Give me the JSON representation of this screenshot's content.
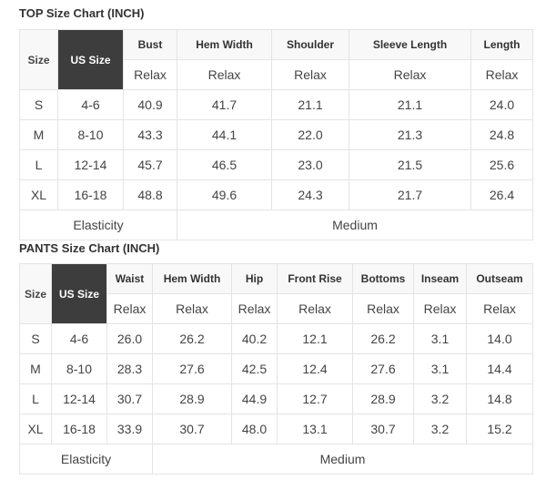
{
  "top": {
    "title": "TOP Size Chart (INCH)",
    "size_label": "Size",
    "us_size_label": "US Size",
    "columns": [
      "Bust",
      "Hem Width",
      "Shoulder",
      "Sleeve Length",
      "Length"
    ],
    "fit": "Relax",
    "rows": [
      {
        "size": "S",
        "us": "4-6",
        "values": [
          "40.9",
          "41.7",
          "21.1",
          "21.1",
          "24.0"
        ]
      },
      {
        "size": "M",
        "us": "8-10",
        "values": [
          "43.3",
          "44.1",
          "22.0",
          "21.3",
          "24.8"
        ]
      },
      {
        "size": "L",
        "us": "12-14",
        "values": [
          "45.7",
          "46.5",
          "23.0",
          "21.5",
          "25.6"
        ]
      },
      {
        "size": "XL",
        "us": "16-18",
        "values": [
          "48.8",
          "49.6",
          "24.3",
          "21.7",
          "26.4"
        ]
      }
    ],
    "elasticity_label": "Elasticity",
    "elasticity_value": "Medium"
  },
  "pants": {
    "title": "PANTS Size Chart (INCH)",
    "size_label": "Size",
    "us_size_label": "US Size",
    "columns": [
      "Waist",
      "Hem Width",
      "Hip",
      "Front Rise",
      "Bottoms",
      "Inseam",
      "Outseam"
    ],
    "fit": "Relax",
    "rows": [
      {
        "size": "S",
        "us": "4-6",
        "values": [
          "26.0",
          "26.2",
          "40.2",
          "12.1",
          "26.2",
          "3.1",
          "14.0"
        ]
      },
      {
        "size": "M",
        "us": "8-10",
        "values": [
          "28.3",
          "27.6",
          "42.5",
          "12.4",
          "27.6",
          "3.1",
          "14.4"
        ]
      },
      {
        "size": "L",
        "us": "12-14",
        "values": [
          "30.7",
          "28.9",
          "44.9",
          "12.7",
          "28.9",
          "3.2",
          "14.8"
        ]
      },
      {
        "size": "XL",
        "us": "16-18",
        "values": [
          "33.9",
          "30.7",
          "48.0",
          "13.1",
          "30.7",
          "3.2",
          "15.2"
        ]
      }
    ],
    "elasticity_label": "Elasticity",
    "elasticity_value": "Medium"
  },
  "colors": {
    "us_size_bg": "#3d3d3d",
    "header_bg": "#f8f8f8",
    "border": "#e4e4e4"
  }
}
